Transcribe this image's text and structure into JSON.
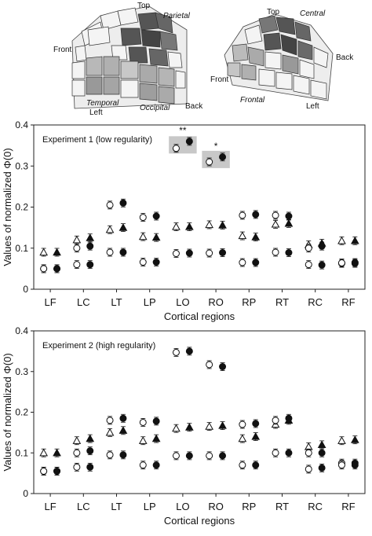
{
  "head_diagrams": {
    "left": {
      "labels": {
        "top": "Top",
        "parietal": "Parietal",
        "front": "Front",
        "temporal": "Temporal",
        "left": "Left",
        "occipital": "Occipital",
        "back": "Back"
      }
    },
    "right": {
      "labels": {
        "top": "Top",
        "central": "Central",
        "back": "Back",
        "front": "Front",
        "frontal": "Frontal",
        "left": "Left"
      }
    }
  },
  "shared": {
    "ylabel": "Values of normalized Φ(0)",
    "xlabel": "Cortical regions",
    "categories": [
      "LF",
      "LC",
      "LT",
      "LP",
      "LO",
      "RO",
      "RP",
      "RT",
      "RC",
      "RF"
    ],
    "yticks": [
      "0",
      "0.1",
      "0.2",
      "0.3",
      "0.4"
    ],
    "ylim": [
      0,
      0.4
    ]
  },
  "chart_data": [
    {
      "type": "scatter",
      "title": "Experiment 1 (low regularity)",
      "xlabel": "Cortical regions",
      "ylabel": "Values of normalized Φ(0)",
      "categories": [
        "LF",
        "LC",
        "LT",
        "LP",
        "LO",
        "RO",
        "RP",
        "RT",
        "RC",
        "RF"
      ],
      "ylim": [
        0,
        0.4
      ],
      "yticks": [
        0,
        0.1,
        0.2,
        0.3,
        0.4
      ],
      "highlight_categories": [
        "LO",
        "RO"
      ],
      "annotations": [
        {
          "category": "LO",
          "text": "**"
        },
        {
          "category": "RO",
          "text": "*"
        }
      ],
      "series": [
        {
          "marker": "triangle",
          "filled": false,
          "values": [
            0.09,
            0.12,
            0.145,
            0.128,
            0.152,
            0.157,
            0.13,
            0.158,
            0.108,
            0.118
          ]
        },
        {
          "marker": "triangle",
          "filled": true,
          "values": [
            0.09,
            0.125,
            0.15,
            0.126,
            0.152,
            0.156,
            0.127,
            0.16,
            0.112,
            0.118
          ]
        },
        {
          "marker": "circle",
          "filled": false,
          "values": [
            0.05,
            0.1,
            0.205,
            0.175,
            null,
            null,
            0.18,
            0.18,
            0.1,
            0.063
          ]
        },
        {
          "marker": "circle",
          "filled": true,
          "values": [
            0.05,
            0.105,
            0.21,
            0.178,
            null,
            null,
            0.182,
            0.178,
            0.105,
            0.063
          ]
        },
        {
          "marker": "circle",
          "filled": false,
          "values": [
            0.05,
            0.06,
            0.09,
            0.066,
            0.087,
            0.088,
            0.065,
            0.09,
            0.06,
            0.064
          ]
        },
        {
          "marker": "circle",
          "filled": true,
          "values": [
            0.05,
            0.06,
            0.09,
            0.066,
            0.088,
            0.089,
            0.065,
            0.089,
            0.059,
            0.065
          ]
        },
        {
          "marker": "circle",
          "filled": false,
          "values": [
            null,
            null,
            null,
            null,
            0.343,
            0.31,
            null,
            null,
            null,
            null
          ]
        },
        {
          "marker": "circle",
          "filled": true,
          "values": [
            null,
            null,
            null,
            null,
            0.36,
            0.322,
            null,
            null,
            null,
            null
          ]
        }
      ]
    },
    {
      "type": "scatter",
      "title": "Experiment 2 (high regularity)",
      "xlabel": "Cortical regions",
      "ylabel": "Values of normalized Φ(0)",
      "categories": [
        "LF",
        "LC",
        "LT",
        "LP",
        "LO",
        "RO",
        "RP",
        "RT",
        "RC",
        "RF"
      ],
      "ylim": [
        0,
        0.4
      ],
      "yticks": [
        0,
        0.1,
        0.2,
        0.3,
        0.4
      ],
      "series": [
        {
          "marker": "triangle",
          "filled": false,
          "values": [
            0.1,
            0.13,
            0.15,
            0.13,
            0.16,
            0.165,
            0.135,
            0.17,
            0.115,
            0.13
          ]
        },
        {
          "marker": "triangle",
          "filled": true,
          "values": [
            0.1,
            0.135,
            0.155,
            0.135,
            0.163,
            0.167,
            0.14,
            0.18,
            0.12,
            0.132
          ]
        },
        {
          "marker": "circle",
          "filled": false,
          "values": [
            0.055,
            0.1,
            0.18,
            0.175,
            null,
            null,
            0.17,
            0.18,
            0.1,
            0.075
          ]
        },
        {
          "marker": "circle",
          "filled": true,
          "values": [
            0.055,
            0.105,
            0.185,
            0.178,
            null,
            null,
            0.172,
            0.185,
            0.1,
            0.075
          ]
        },
        {
          "marker": "circle",
          "filled": false,
          "values": [
            0.055,
            0.065,
            0.095,
            0.07,
            0.093,
            0.093,
            0.07,
            0.1,
            0.06,
            0.07
          ]
        },
        {
          "marker": "circle",
          "filled": true,
          "values": [
            0.055,
            0.065,
            0.095,
            0.07,
            0.093,
            0.093,
            0.07,
            0.1,
            0.063,
            0.07
          ]
        },
        {
          "marker": "circle",
          "filled": false,
          "values": [
            null,
            null,
            null,
            null,
            0.347,
            0.317,
            null,
            null,
            null,
            null
          ]
        },
        {
          "marker": "circle",
          "filled": true,
          "values": [
            null,
            null,
            null,
            null,
            0.35,
            0.312,
            null,
            null,
            null,
            null
          ]
        }
      ]
    }
  ]
}
